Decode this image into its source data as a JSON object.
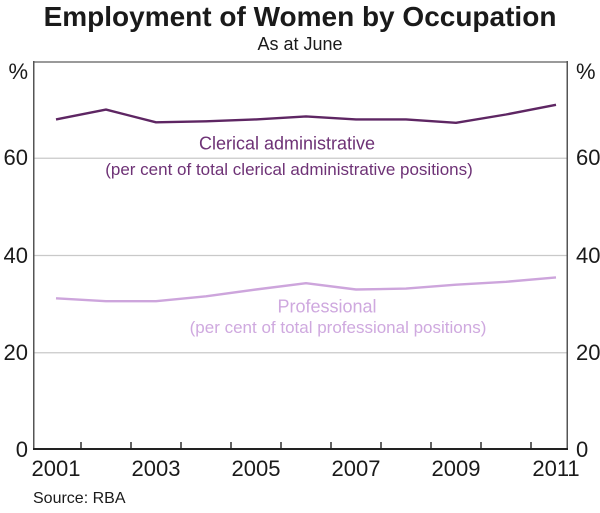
{
  "chart_data": {
    "type": "line",
    "title": "Employment of Women by Occupation",
    "subtitle": "As at June",
    "unit_label": "%",
    "source": "Source: RBA",
    "x": [
      2001,
      2002,
      2003,
      2004,
      2005,
      2006,
      2007,
      2008,
      2009,
      2010,
      2011
    ],
    "x_tick_labels": [
      "2001",
      "2003",
      "2005",
      "2007",
      "2009",
      "2011"
    ],
    "ylim": [
      0,
      80
    ],
    "y_tick_values": [
      0,
      20,
      40,
      60
    ],
    "y_gridlines": [
      20,
      40,
      60
    ],
    "grid_on": true,
    "legend_position": "inline-annotations",
    "series": [
      {
        "name": "Clerical administrative",
        "note": "(per cent of total clerical administrative positions)",
        "color": "#5e2663",
        "label_color": "#6e3276",
        "values": [
          68.0,
          70.0,
          67.4,
          67.6,
          68.0,
          68.6,
          68.0,
          68.0,
          67.3,
          69.0,
          71.0
        ]
      },
      {
        "name": "Professional",
        "note": "(per cent of total professional positions)",
        "color": "#cda5dc",
        "label_color": "#cfa9df",
        "values": [
          31.2,
          30.6,
          30.6,
          31.6,
          33.0,
          34.3,
          33.0,
          33.2,
          34.0,
          34.6,
          35.5
        ]
      }
    ],
    "frame_colors": {
      "top": "#9a9a9a",
      "sides": "#555555",
      "bottom": "#222222",
      "gridline": "#c9c9c9"
    }
  }
}
